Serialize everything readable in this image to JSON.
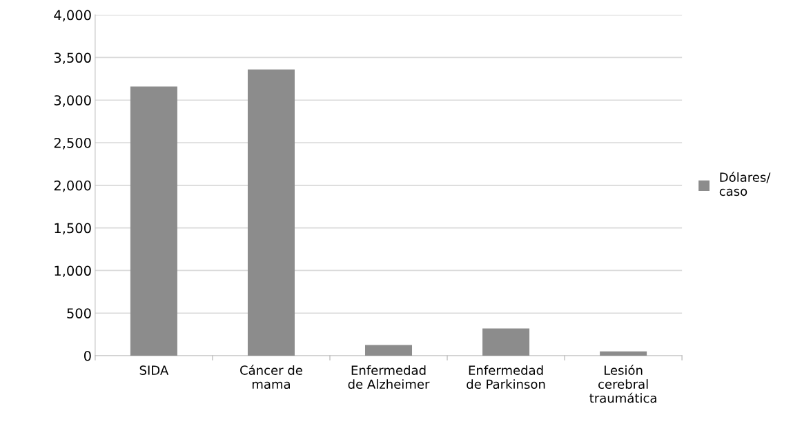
{
  "chart_data": {
    "type": "bar",
    "categories": [
      "SIDA",
      "Cáncer de\nmama",
      "Enfermedad\nde Alzheimer",
      "Enfermedad\nde Parkinson",
      "Lesión\ncerebral\ntraumática"
    ],
    "series": [
      {
        "name": "Dólares/\ncaso",
        "color": "#8c8c8c",
        "values": [
          3160,
          3360,
          125,
          320,
          50
        ]
      }
    ],
    "ylim": [
      0,
      4000
    ],
    "yticks": [
      {
        "value": 0,
        "label": "0"
      },
      {
        "value": 500,
        "label": "500"
      },
      {
        "value": 1000,
        "label": "1,000"
      },
      {
        "value": 1500,
        "label": "1,500"
      },
      {
        "value": 2000,
        "label": "2,000"
      },
      {
        "value": 2500,
        "label": "2,500"
      },
      {
        "value": 3000,
        "label": "3,000"
      },
      {
        "value": 3500,
        "label": "3,500"
      },
      {
        "value": 4000,
        "label": "4,000"
      }
    ],
    "grid": "y",
    "legend": "right"
  }
}
